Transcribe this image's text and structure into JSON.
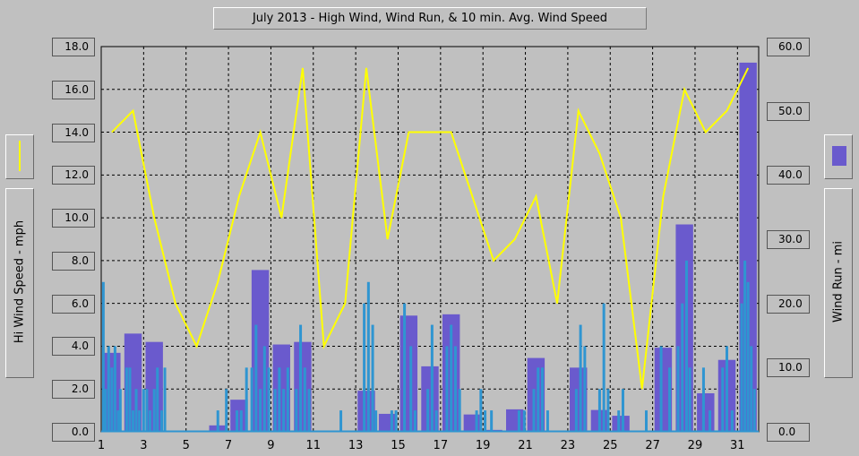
{
  "title": "July 2013 - High Wind, Wind Run, & 10 min. Avg. Wind Speed",
  "left_axis_label": "Hi Wind Speed - mph",
  "right_axis_label": "Wind Run - mi",
  "colors": {
    "background": "#c0c0c0",
    "high_wind_line": "#ffff00",
    "wind_run_bar": "#6a5acd",
    "avg_wind_bar": "#2f95d1"
  },
  "legend_left_icon": "yellow-line-swatch",
  "legend_right_icon": "purple-bar-swatch",
  "chart_data": {
    "type": "bar+line",
    "title": "July 2013 - High Wind, Wind Run, & 10 min. Avg. Wind Speed",
    "xlabel": "",
    "ylabel_left": "Hi Wind Speed - mph",
    "ylabel_right": "Wind Run - mi",
    "ylim_left": [
      0,
      18
    ],
    "ylim_right": [
      0,
      60
    ],
    "xlim": [
      1,
      32
    ],
    "x_ticks": [
      "1",
      "3",
      "5",
      "7",
      "9",
      "11",
      "13",
      "15",
      "17",
      "19",
      "21",
      "23",
      "25",
      "27",
      "29",
      "31"
    ],
    "y_ticks_left": [
      "0.0",
      "2.0",
      "4.0",
      "6.0",
      "8.0",
      "10.0",
      "12.0",
      "14.0",
      "16.0",
      "18.0"
    ],
    "y_ticks_right": [
      "0.0",
      "10.0",
      "20.0",
      "30.0",
      "40.0",
      "50.0",
      "60.0"
    ],
    "grid": true,
    "series": [
      {
        "type": "line",
        "axis": "left",
        "color": "#ffff00",
        "x": [
          1.5,
          2.5,
          3.5,
          4.5,
          5.5,
          6.5,
          7.5,
          8.5,
          9.5,
          10.5,
          11.5,
          12.5,
          13.5,
          14.5,
          15.5,
          16.5,
          17.5,
          18.5,
          19.5,
          20.5,
          21.5,
          22.5,
          23.5,
          24.5,
          25.5,
          26.5,
          27.5,
          28.5,
          29.5,
          30.5,
          31.5
        ],
        "values": [
          14,
          15,
          10,
          6,
          4,
          7,
          11,
          14,
          10,
          17,
          4,
          6,
          17,
          9,
          14,
          14,
          14,
          11,
          8,
          9,
          11,
          6,
          15,
          13,
          10,
          2,
          11,
          16,
          14,
          15,
          17
        ]
      },
      {
        "type": "bar",
        "axis": "right",
        "color": "#6a5acd",
        "x": [
          1.5,
          2.5,
          3.5,
          4.5,
          5.5,
          6.5,
          7.5,
          8.5,
          9.5,
          10.5,
          11.5,
          12.5,
          13.5,
          14.5,
          15.5,
          16.5,
          17.5,
          18.5,
          19.5,
          20.5,
          21.5,
          22.5,
          23.5,
          24.5,
          25.5,
          26.5,
          27.5,
          28.5,
          29.5,
          30.5,
          31.5
        ],
        "values": [
          12.3,
          15.3,
          14,
          0,
          0,
          1,
          5,
          25.2,
          13.6,
          14,
          0,
          0,
          6.4,
          2.8,
          18.1,
          10.2,
          18.3,
          2.7,
          0.3,
          3.5,
          11.5,
          0,
          10,
          3.4,
          2.5,
          0,
          13.1,
          32.3,
          6,
          11.2,
          57.5
        ]
      },
      {
        "type": "bar",
        "axis": "left",
        "color": "#2f95d1",
        "x": [
          1.1,
          1.2,
          1.35,
          1.5,
          1.65,
          1.8,
          1.9,
          2.2,
          2.35,
          2.5,
          2.65,
          2.8,
          3.0,
          3.15,
          3.3,
          3.5,
          3.65,
          3.85,
          4.0,
          6.5,
          6.9,
          7.4,
          7.6,
          7.85,
          8.1,
          8.3,
          8.5,
          8.7,
          8.9,
          9.2,
          9.4,
          9.6,
          9.8,
          10.2,
          10.4,
          10.6,
          10.8,
          12.3,
          13.4,
          13.6,
          13.8,
          13.95,
          14.7,
          14.9,
          15.3,
          15.6,
          15.8,
          16.4,
          16.6,
          16.8,
          17.3,
          17.5,
          17.7,
          17.9,
          18.7,
          18.9,
          19.1,
          19.4,
          20.7,
          20.95,
          21.4,
          21.6,
          21.8,
          22.05,
          23.4,
          23.6,
          23.8,
          24.5,
          24.7,
          24.9,
          25.4,
          25.6,
          26.7,
          27.4,
          27.8,
          28.2,
          28.4,
          28.6,
          28.75,
          29.4,
          29.7,
          30.3,
          30.5,
          30.75,
          31.2,
          31.35,
          31.5,
          31.65,
          31.8
        ],
        "values": [
          7,
          2,
          4,
          3,
          4,
          1,
          2,
          3,
          3,
          1,
          2,
          1,
          2,
          2,
          1,
          2,
          3,
          1,
          3,
          1,
          2,
          1,
          1,
          3,
          3,
          5,
          2,
          4,
          3,
          2,
          3,
          2,
          3,
          2,
          5,
          3,
          2,
          1,
          6,
          7,
          5,
          1,
          1,
          1,
          6,
          4,
          1,
          2,
          5,
          1,
          4,
          5,
          4,
          2,
          1,
          2,
          1,
          1,
          1,
          1,
          2,
          3,
          3,
          1,
          2,
          5,
          4,
          2,
          6,
          2,
          1,
          2,
          1,
          4,
          3,
          4,
          6,
          8,
          3,
          3,
          1,
          3,
          4,
          1,
          6,
          8,
          7,
          4,
          2
        ]
      }
    ]
  }
}
